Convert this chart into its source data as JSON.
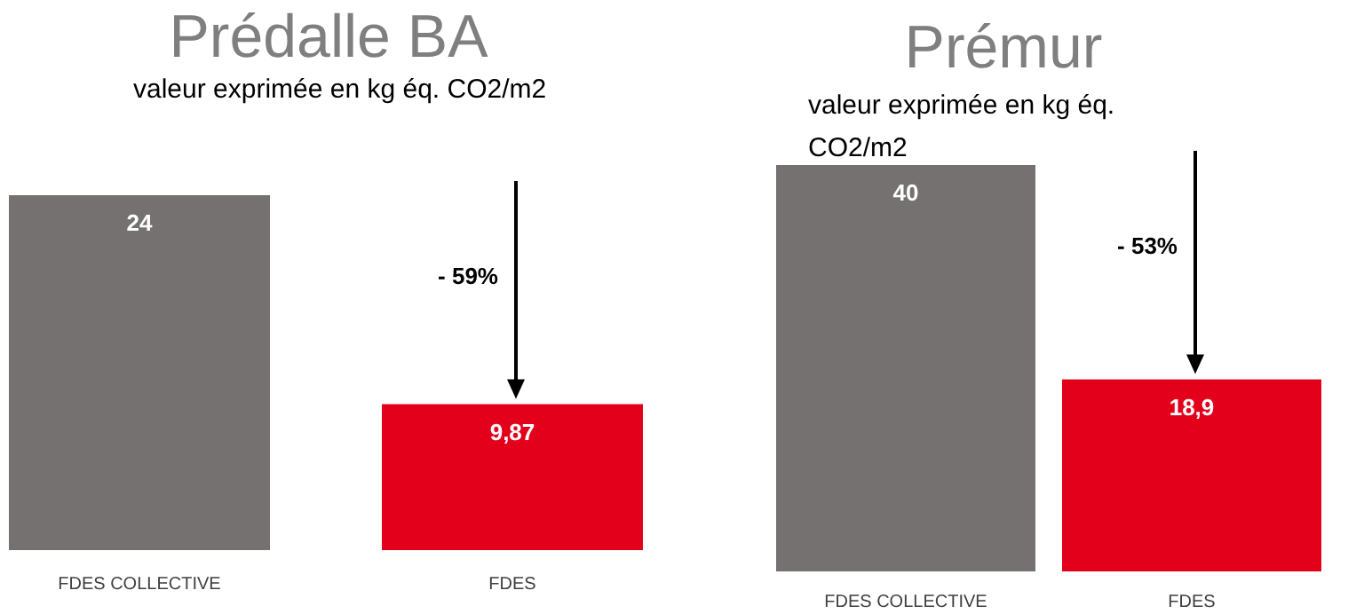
{
  "chart_data": [
    {
      "type": "bar",
      "title": "Prédalle BA",
      "subtitle": "valeur exprimée en kg éq. CO2/m2",
      "categories": [
        "FDES COLLECTIVE",
        "FDES"
      ],
      "values": [
        24,
        9.87
      ],
      "value_labels": [
        "24",
        "9,87"
      ],
      "colors": [
        "#767171",
        "#e3001b"
      ],
      "annotations": [
        "- 59%"
      ]
    },
    {
      "type": "bar",
      "title": "Prémur",
      "subtitle": "valeur exprimée en kg éq. CO2/m2",
      "categories": [
        "FDES COLLECTIVE",
        "FDES"
      ],
      "values": [
        40,
        18.9
      ],
      "value_labels": [
        "40",
        "18,9"
      ],
      "colors": [
        "#767171",
        "#e3001b"
      ],
      "annotations": [
        "- 53%"
      ]
    }
  ]
}
